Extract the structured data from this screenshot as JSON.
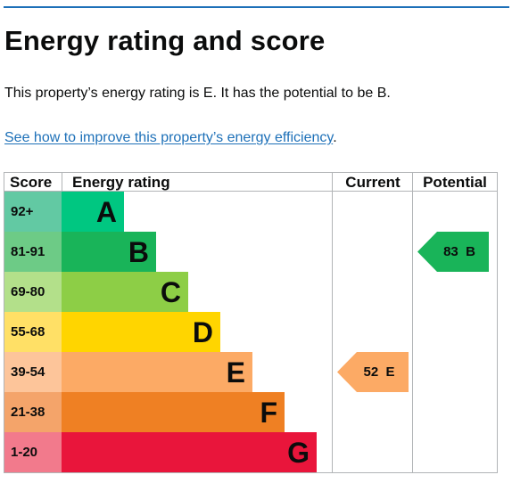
{
  "heading": "Energy rating and score",
  "summary": "This property’s energy rating is E. It has the potential to be B.",
  "link": {
    "text": "See how to improve this property’s energy efficiency",
    "suffix": "."
  },
  "table": {
    "col_score": "Score",
    "col_rating": "Energy rating",
    "col_current": "Current",
    "col_potential": "Potential"
  },
  "bands": [
    {
      "score": "92+",
      "letter": "A",
      "score_bg": "#62c9a3",
      "bar_color": "#00c781"
    },
    {
      "score": "81-91",
      "letter": "B",
      "score_bg": "#6dcb86",
      "bar_color": "#19b459"
    },
    {
      "score": "69-80",
      "letter": "C",
      "score_bg": "#b3e08a",
      "bar_color": "#8dce46"
    },
    {
      "score": "55-68",
      "letter": "D",
      "score_bg": "#ffe066",
      "bar_color": "#ffd500"
    },
    {
      "score": "39-54",
      "letter": "E",
      "score_bg": "#fdc59a",
      "bar_color": "#fcaa65"
    },
    {
      "score": "21-38",
      "letter": "F",
      "score_bg": "#f4a46a",
      "bar_color": "#ef8023"
    },
    {
      "score": "1-20",
      "letter": "G",
      "score_bg": "#f27a8c",
      "bar_color": "#e9153b"
    }
  ],
  "current": {
    "label": "52  E",
    "band": "E",
    "color": "#fcaa65"
  },
  "potential": {
    "label": "83  B",
    "band": "B",
    "color": "#19b459"
  }
}
